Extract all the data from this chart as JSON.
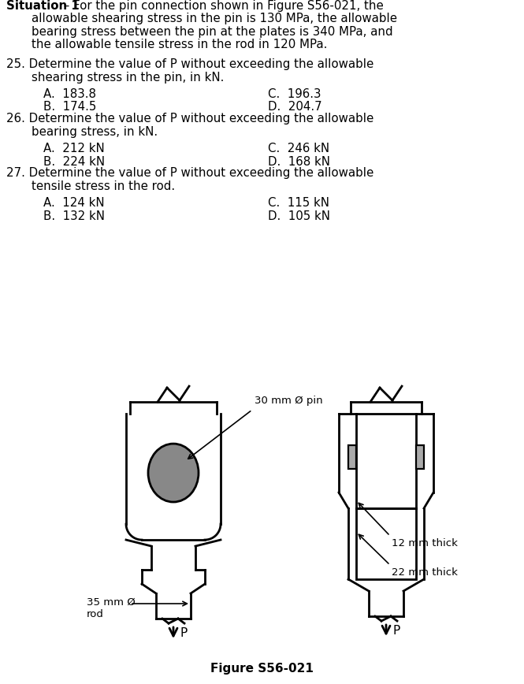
{
  "bg_color": "#ffffff",
  "text_color": "#000000",
  "fig_caption": "Figure S56-021",
  "label_pin": "30 mm Ø pin",
  "label_12mm": "12 mm thick",
  "label_22mm": "22 mm thick",
  "label_35mm": "35 mm Ø\nrod",
  "pin_circle_color": "#888888",
  "line_color": "#000000",
  "line_width": 2.0,
  "situation_bold": "Situation 1",
  "situation_rest": " – For the pin connection shown in Figure S56-021, the\n    allowable shearing stress in the pin is 130 MPa, the allowable\n    bearing stress between the pin at the plates is 340 MPa, and\n    the allowable tensile stress in the rod in 120 MPa.",
  "q25_main": "25. Determine the value of P without exceeding the allowable\n      shearing stress in the pin, in kN.",
  "q25_A": "A.  183.8",
  "q25_B": "B.  174.5",
  "q25_C": "C.  196.3",
  "q25_D": "D.  204.7",
  "q26_main": "26. Determine the value of P without exceeding the allowable\n      bearing stress, in kN.",
  "q26_A": "A.  212 kN",
  "q26_B": "B.  224 kN",
  "q26_C": "C.  246 kN",
  "q26_D": "D.  168 kN",
  "q27_main": "27. Determine the value of P without exceeding the allowable\n      tensile stress in the rod.",
  "q27_A": "A.  124 kN",
  "q27_B": "B.  132 kN",
  "q27_C": "C.  115 kN",
  "q27_D": "D.  105 kN"
}
